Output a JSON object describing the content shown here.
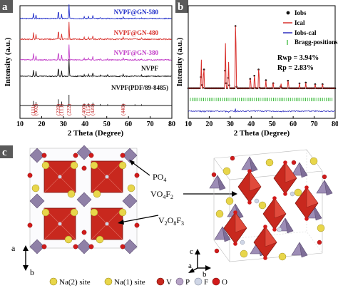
{
  "panels": {
    "a": {
      "letter": "a",
      "ylabel": "Intensity (a.u.)",
      "xlabel": "2 Theta (Degree)",
      "xticks": [
        "10",
        "20",
        "30",
        "40",
        "50",
        "60",
        "70",
        "80"
      ],
      "traces": [
        {
          "name": "NVPF@GN-580",
          "color": "#1f2cc9"
        },
        {
          "name": "NVPF@GN-480",
          "color": "#d8302c"
        },
        {
          "name": "NVPF@GN-380",
          "color": "#c23fc8"
        },
        {
          "name": "NVPF",
          "color": "#111111"
        },
        {
          "name": "NVPF(PDF/89-8485)",
          "color": "#111111"
        }
      ],
      "hkl": [
        {
          "label": "(111)",
          "x": 16.2
        },
        {
          "label": "(002)",
          "x": 17.4
        },
        {
          "label": "(220)",
          "x": 27.7
        },
        {
          "label": "(113)",
          "x": 29.2
        },
        {
          "label": "(222)",
          "x": 32.6
        },
        {
          "label": "(400)",
          "x": 39.6
        },
        {
          "label": "(115)",
          "x": 41.6
        },
        {
          "label": "(420)",
          "x": 43.6
        },
        {
          "label": "(440)",
          "x": 57.6
        }
      ]
    },
    "b": {
      "letter": "b",
      "ylabel": "Intensity (a.u.)",
      "xlabel": "2 Theta (Degree)",
      "xticks": [
        "10",
        "20",
        "30",
        "40",
        "50",
        "60",
        "70",
        "80"
      ],
      "legend": [
        {
          "label": "Iobs",
          "color": "#111111",
          "kind": "dot"
        },
        {
          "label": "Ical",
          "color": "#d8302c",
          "kind": "line"
        },
        {
          "label": "Iobs-cal",
          "color": "#2d2dbf",
          "kind": "line"
        },
        {
          "label": "Bragg-positions",
          "color": "#2db52d",
          "kind": "tick"
        }
      ],
      "rwp": "Rwp = 3.94%",
      "rp": "Rp = 2.83%"
    },
    "c": {
      "letter": "c",
      "callouts": {
        "po4": {
          "main": "PO",
          "sub": "4"
        },
        "vo4f2": {
          "main1": "VO",
          "sub1": "4",
          "main2": "F",
          "sub2": "2"
        },
        "v2o8f3": {
          "main1": "V",
          "sub1": "2",
          "main2": "O",
          "sub2": "8",
          "main3": "F",
          "sub3": "3"
        }
      },
      "axes_left": {
        "a": "a",
        "b": "b"
      },
      "axes_right": {
        "c": "c",
        "a": "a",
        "b": "b"
      },
      "legend": [
        {
          "label": "Na(2) site",
          "color": "#e8d64a"
        },
        {
          "label": "Na(1) site",
          "color": "#e8d64a"
        },
        {
          "label": "V",
          "color": "#c8281e"
        },
        {
          "label": "P",
          "color": "#b6a3c6"
        },
        {
          "label": "F",
          "color": "#cfd6e6"
        },
        {
          "label": "O",
          "color": "#d11a1a"
        }
      ]
    }
  }
}
